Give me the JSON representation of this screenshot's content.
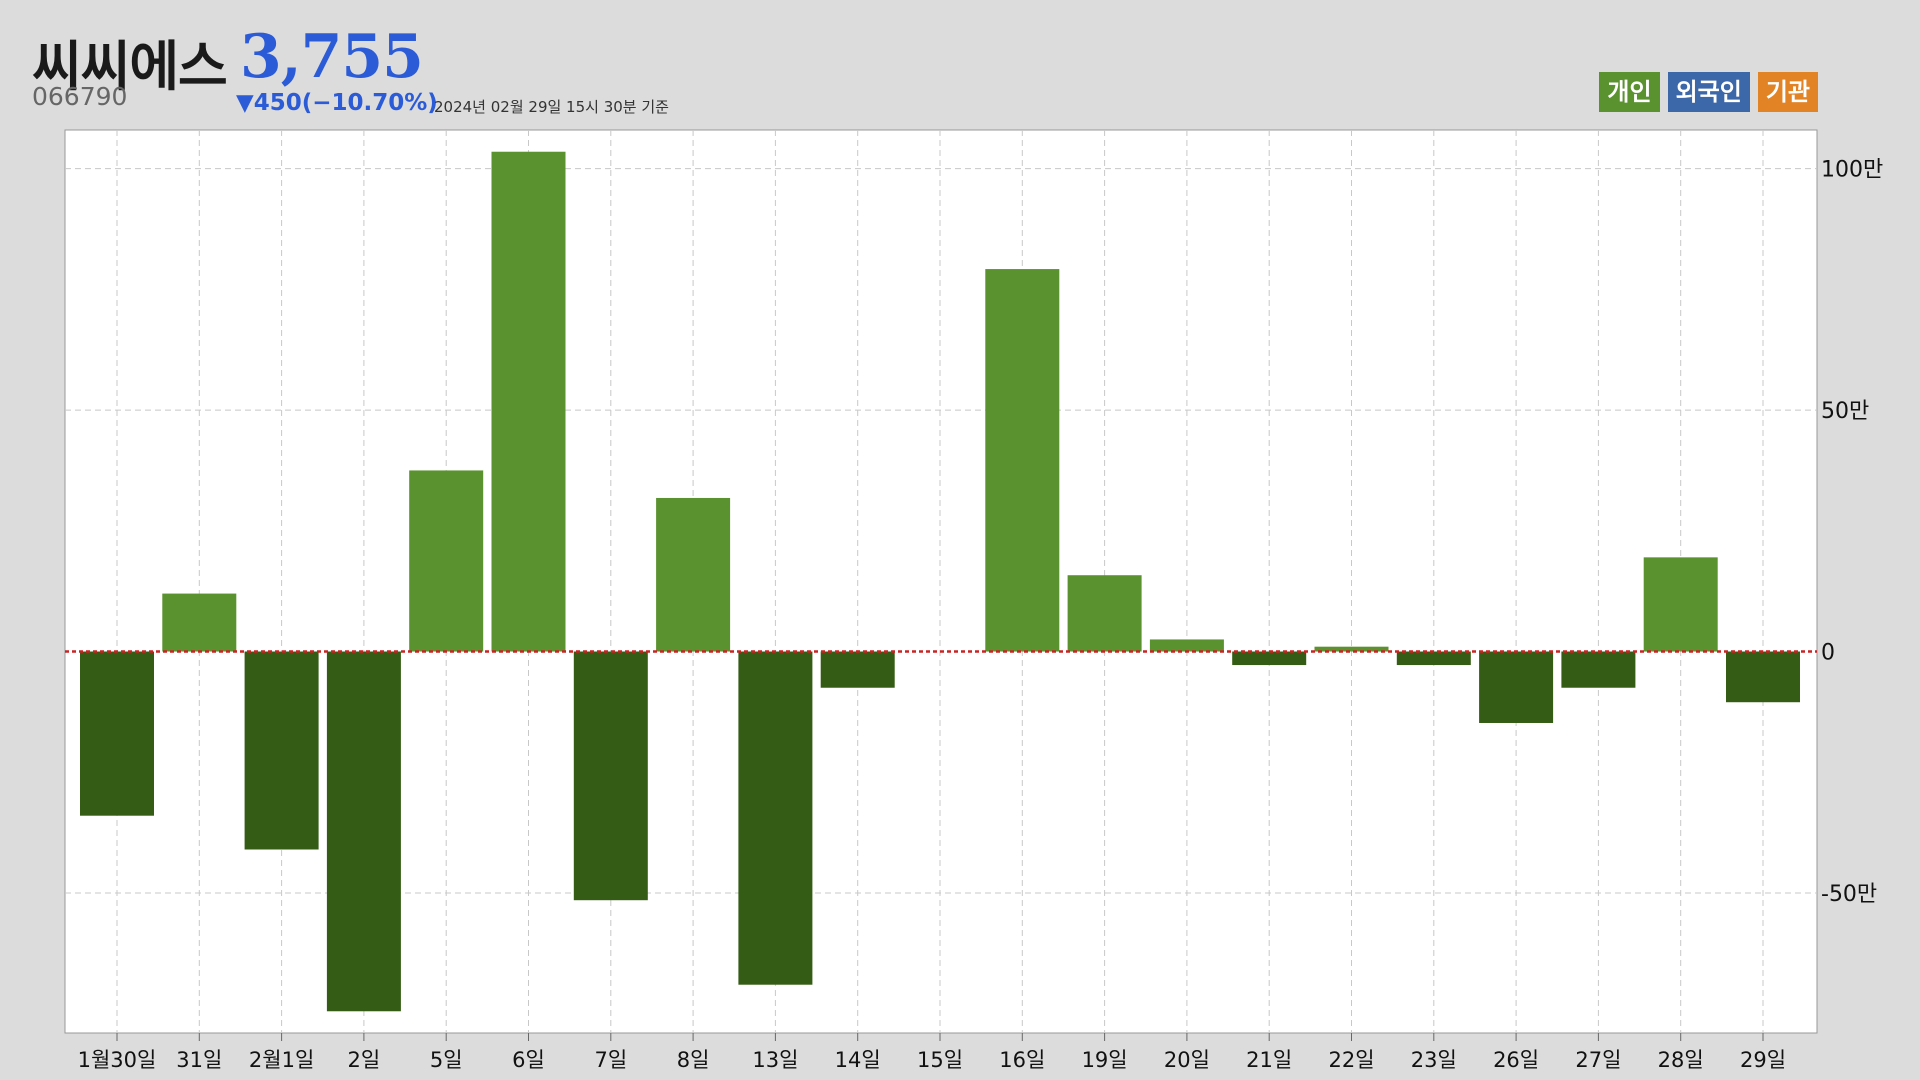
{
  "header": {
    "name": "씨씨에스",
    "price": "3,755",
    "code": "066790",
    "change": "▼450(−10.70%)",
    "asof": "2024년 02월 29일 15시 30분 기준"
  },
  "legend": [
    {
      "label": "개인",
      "color": "#5a9230"
    },
    {
      "label": "외국인",
      "color": "#3c67a8"
    },
    {
      "label": "기관",
      "color": "#e28426"
    }
  ],
  "chart_data": {
    "type": "bar",
    "categories": [
      "1월30일",
      "31일",
      "2월1일",
      "2일",
      "5일",
      "6일",
      "7일",
      "8일",
      "13일",
      "14일",
      "15일",
      "16일",
      "19일",
      "20일",
      "21일",
      "22일",
      "23일",
      "26일",
      "27일",
      "28일",
      "29일"
    ],
    "series": [
      {
        "name": "개인",
        "values": [
          -340000,
          120000,
          -410000,
          -745000,
          375000,
          1035000,
          -515000,
          318000,
          -690000,
          -75000,
          0,
          792000,
          158000,
          25000,
          -28000,
          10000,
          -28000,
          -148000,
          -75000,
          195000,
          -105000
        ]
      }
    ],
    "positive_color": "#5a9230",
    "negative_color": "#345c14",
    "zero_line_color": "#cc2222",
    "ylim": [
      -790000,
      1080000
    ],
    "yticks": [
      {
        "value": 1000000,
        "label": "100만"
      },
      {
        "value": 500000,
        "label": "50만"
      },
      {
        "value": 0,
        "label": "0"
      },
      {
        "value": -500000,
        "label": "-50만"
      }
    ],
    "grid": true,
    "legend_position": "top-right"
  }
}
